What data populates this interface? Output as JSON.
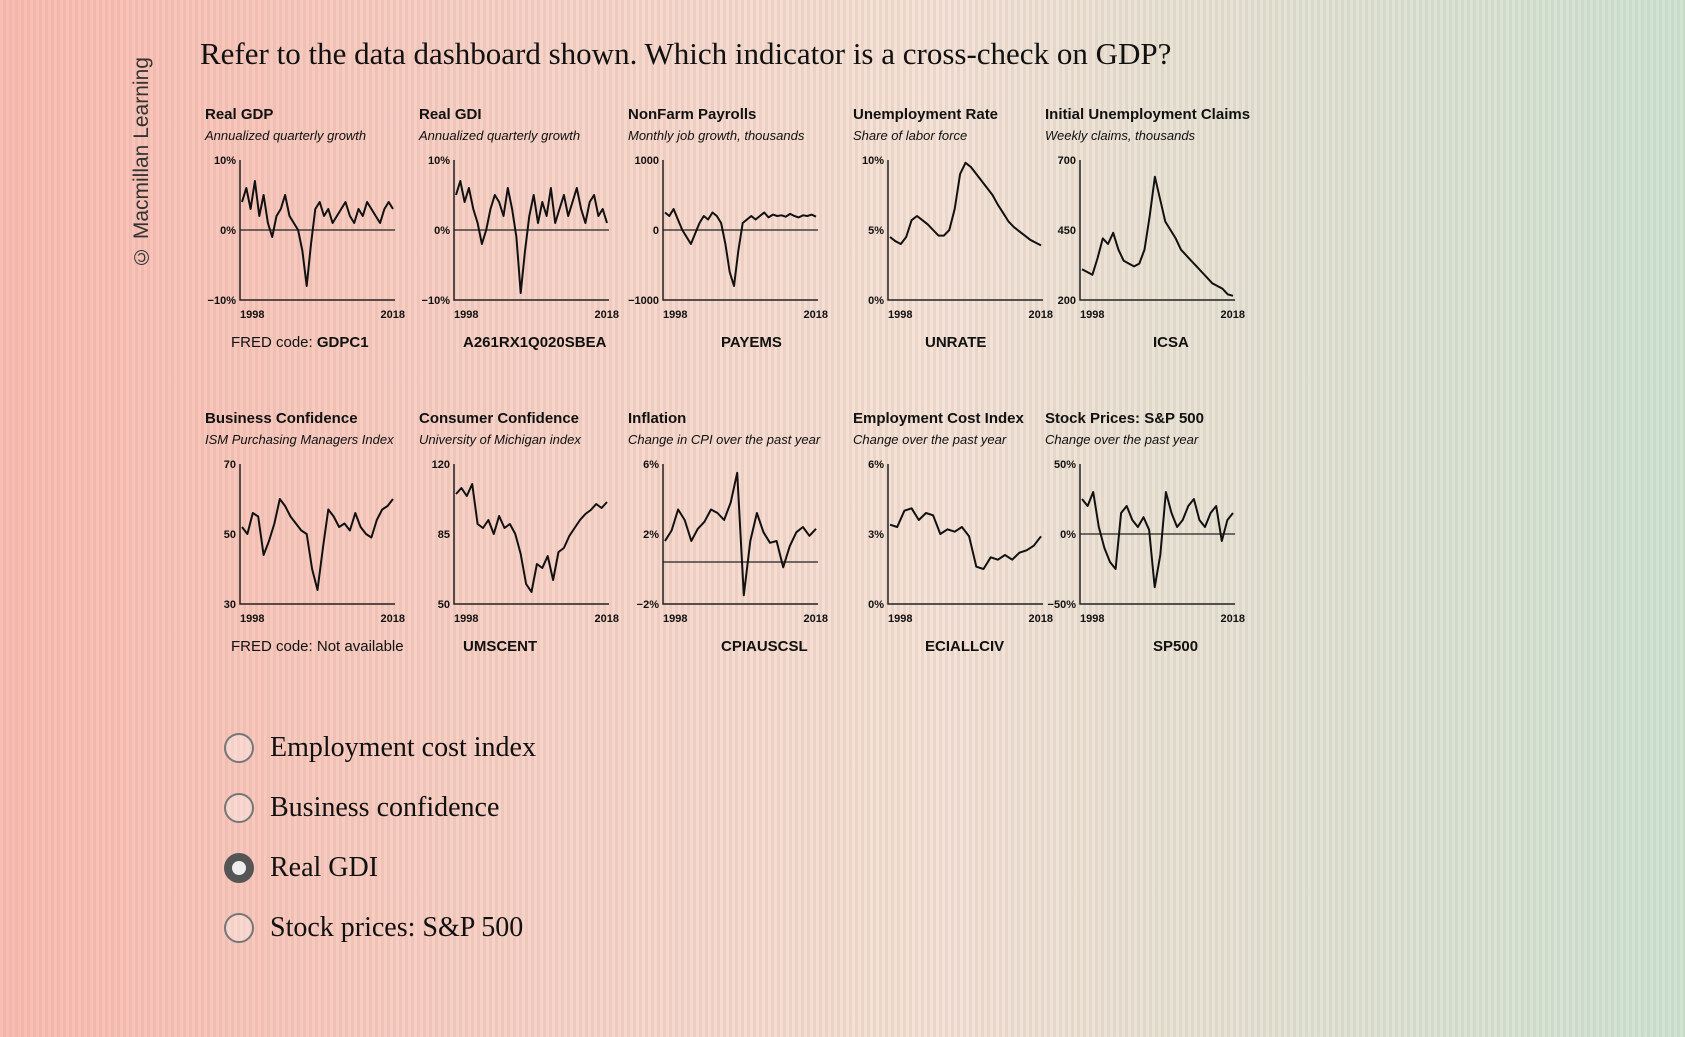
{
  "watermark": "© Macmillan Learning",
  "question": "Refer to the data dashboard shown. Which indicator is a cross-check on GDP?",
  "panels": [
    {
      "title": "Real GDP",
      "subtitle": "Annualized quarterly growth",
      "ylabels": [
        "10%",
        "0%",
        "−10%"
      ],
      "xlabels": [
        "1998",
        "2018"
      ],
      "code_prefix": "FRED code: ",
      "code": "GDPC1",
      "ref": 0.5,
      "chart_data": {
        "type": "line",
        "title": "Real GDP",
        "x_range": [
          1998,
          2018
        ],
        "ylim": [
          -10,
          10
        ],
        "y_ticks": [
          "10%",
          "0%",
          "−10%"
        ],
        "series": [
          {
            "values": [
              4,
              6,
              3,
              7,
              2,
              5,
              1,
              -1,
              2,
              3,
              5,
              2,
              1,
              0,
              -3,
              -8,
              -2,
              3,
              4,
              2,
              3,
              1,
              2,
              3,
              4,
              2,
              1,
              3,
              2,
              4,
              3,
              2,
              1,
              3,
              4,
              3
            ]
          }
        ]
      }
    },
    {
      "title": "Real GDI",
      "subtitle": "Annualized quarterly growth",
      "ylabels": [
        "10%",
        "0%",
        "−10%"
      ],
      "xlabels": [
        "1998",
        "2018"
      ],
      "code_prefix": "",
      "code": "A261RX1Q020SBEA",
      "ref": 0.5,
      "chart_data": {
        "type": "line",
        "title": "Real GDI",
        "x_range": [
          1998,
          2018
        ],
        "ylim": [
          -10,
          10
        ],
        "y_ticks": [
          "10%",
          "0%",
          "−10%"
        ],
        "series": [
          {
            "values": [
              5,
              7,
              4,
              6,
              3,
              1,
              -2,
              0,
              3,
              5,
              4,
              2,
              6,
              3,
              -1,
              -9,
              -3,
              2,
              5,
              1,
              4,
              2,
              6,
              1,
              3,
              5,
              2,
              4,
              6,
              3,
              1,
              4,
              5,
              2,
              3,
              1
            ]
          }
        ]
      }
    },
    {
      "title": "NonFarm Payrolls",
      "subtitle": "Monthly job growth, thousands",
      "ylabels": [
        "1000",
        "0",
        "−1000"
      ],
      "xlabels": [
        "1998",
        "2018"
      ],
      "code_prefix": "",
      "code": "PAYEMS",
      "ref": 0.5,
      "chart_data": {
        "type": "line",
        "title": "NonFarm Payrolls",
        "x_range": [
          1998,
          2018
        ],
        "ylim": [
          -1000,
          1000
        ],
        "y_ticks": [
          "1000",
          "0",
          "−1000"
        ],
        "series": [
          {
            "values": [
              250,
              200,
              300,
              150,
              0,
              -100,
              -200,
              -50,
              100,
              200,
              150,
              250,
              200,
              100,
              -200,
              -600,
              -800,
              -300,
              100,
              150,
              200,
              150,
              200,
              250,
              180,
              220,
              200,
              210,
              190,
              230,
              200,
              180,
              210,
              200,
              220,
              190
            ]
          }
        ]
      }
    },
    {
      "title": "Unemployment Rate",
      "subtitle": "Share of labor force",
      "ylabels": [
        "10%",
        "5%",
        "0%"
      ],
      "xlabels": [
        "1998",
        "2018"
      ],
      "code_prefix": "",
      "code": "UNRATE",
      "ref": null,
      "chart_data": {
        "type": "line",
        "title": "Unemployment Rate",
        "x_range": [
          1998,
          2018
        ],
        "ylim": [
          0,
          10
        ],
        "y_ticks": [
          "10%",
          "5%",
          "0%"
        ],
        "series": [
          {
            "values": [
              4.5,
              4.2,
              4.0,
              4.5,
              5.7,
              6.0,
              5.7,
              5.4,
              5.0,
              4.6,
              4.6,
              5.0,
              6.5,
              9.0,
              9.8,
              9.5,
              9.0,
              8.5,
              8.0,
              7.5,
              6.8,
              6.2,
              5.6,
              5.2,
              4.9,
              4.6,
              4.3,
              4.1,
              3.9
            ]
          }
        ]
      }
    },
    {
      "title": "Initial Unemployment Claims",
      "subtitle": "Weekly claims, thousands",
      "ylabels": [
        "700",
        "450",
        "200"
      ],
      "xlabels": [
        "1998",
        "2018"
      ],
      "code_prefix": "",
      "code": "ICSA",
      "ref": null,
      "chart_data": {
        "type": "line",
        "title": "Initial Unemployment Claims",
        "x_range": [
          1998,
          2018
        ],
        "ylim": [
          200,
          700
        ],
        "y_ticks": [
          "700",
          "450",
          "200"
        ],
        "series": [
          {
            "values": [
              310,
              300,
              290,
              350,
              420,
              400,
              440,
              380,
              340,
              330,
              320,
              330,
              380,
              500,
              640,
              560,
              480,
              450,
              420,
              380,
              360,
              340,
              320,
              300,
              280,
              260,
              250,
              240,
              220,
              215
            ]
          }
        ]
      }
    },
    {
      "title": "Business Confidence",
      "subtitle": "ISM Purchasing Managers Index",
      "ylabels": [
        "70",
        "50",
        "30"
      ],
      "xlabels": [
        "1998",
        "2018"
      ],
      "code_prefix": "FRED code: ",
      "code": "Not available",
      "ref": null,
      "chart_data": {
        "type": "line",
        "title": "Business Confidence",
        "x_range": [
          1998,
          2018
        ],
        "ylim": [
          30,
          70
        ],
        "y_ticks": [
          "70",
          "50",
          "30"
        ],
        "series": [
          {
            "values": [
              52,
              50,
              56,
              55,
              44,
              48,
              53,
              60,
              58,
              55,
              53,
              51,
              50,
              40,
              34,
              46,
              57,
              55,
              52,
              53,
              51,
              56,
              52,
              50,
              49,
              54,
              57,
              58,
              60
            ]
          }
        ]
      }
    },
    {
      "title": "Consumer Confidence",
      "subtitle": "University of Michigan index",
      "ylabels": [
        "120",
        "85",
        "50"
      ],
      "xlabels": [
        "1998",
        "2018"
      ],
      "code_prefix": "",
      "code": "UMSCENT",
      "ref": null,
      "chart_data": {
        "type": "line",
        "title": "Consumer Confidence",
        "x_range": [
          1998,
          2018
        ],
        "ylim": [
          50,
          120
        ],
        "y_ticks": [
          "120",
          "85",
          "50"
        ],
        "series": [
          {
            "values": [
              105,
              108,
              104,
              110,
              90,
              88,
              92,
              85,
              94,
              88,
              90,
              85,
              75,
              60,
              56,
              70,
              68,
              74,
              62,
              76,
              78,
              84,
              88,
              92,
              95,
              97,
              100,
              98,
              101
            ]
          }
        ]
      }
    },
    {
      "title": "Inflation",
      "subtitle": "Change in CPI over the past year",
      "ylabels": [
        "6%",
        "2%",
        "−2%"
      ],
      "xlabels": [
        "1998",
        "2018"
      ],
      "code_prefix": "",
      "code": "CPIAUSCSL",
      "ref": 0.3,
      "chart_data": {
        "type": "line",
        "title": "Inflation",
        "x_range": [
          1998,
          2018
        ],
        "ylim": [
          -2,
          6
        ],
        "y_ticks": [
          "6%",
          "2%",
          "−2%"
        ],
        "series": [
          {
            "values": [
              1.6,
              2.2,
              3.4,
              2.8,
              1.6,
              2.3,
              2.7,
              3.4,
              3.2,
              2.8,
              3.8,
              5.5,
              -1.5,
              1.6,
              3.2,
              2.1,
              1.5,
              1.6,
              0.1,
              1.3,
              2.1,
              2.4,
              1.9,
              2.3
            ]
          }
        ]
      }
    },
    {
      "title": "Employment Cost Index",
      "subtitle": "Change over the past year",
      "ylabels": [
        "6%",
        "3%",
        "0%"
      ],
      "xlabels": [
        "1998",
        "2018"
      ],
      "code_prefix": "",
      "code": "ECIALLCIV",
      "ref": null,
      "chart_data": {
        "type": "line",
        "title": "Employment Cost Index",
        "x_range": [
          1998,
          2018
        ],
        "ylim": [
          0,
          6
        ],
        "y_ticks": [
          "6%",
          "3%",
          "0%"
        ],
        "series": [
          {
            "values": [
              3.4,
              3.3,
              4.0,
              4.1,
              3.6,
              3.9,
              3.8,
              3.0,
              3.2,
              3.1,
              3.3,
              2.9,
              1.6,
              1.5,
              2.0,
              1.9,
              2.1,
              1.9,
              2.2,
              2.3,
              2.5,
              2.9
            ]
          }
        ]
      }
    },
    {
      "title": "Stock Prices: S&P 500",
      "subtitle": "Change over the past year",
      "ylabels": [
        "50%",
        "0%",
        "−50%"
      ],
      "xlabels": [
        "1998",
        "2018"
      ],
      "code_prefix": "",
      "code": "SP500",
      "ref": 0.5,
      "chart_data": {
        "type": "line",
        "title": "Stock Prices: S&P 500",
        "x_range": [
          1998,
          2018
        ],
        "ylim": [
          -50,
          50
        ],
        "y_ticks": [
          "50%",
          "0%",
          "−50%"
        ],
        "series": [
          {
            "values": [
              25,
              20,
              30,
              5,
              -10,
              -20,
              -25,
              15,
              20,
              10,
              5,
              12,
              3,
              -38,
              -15,
              30,
              15,
              5,
              10,
              20,
              25,
              10,
              5,
              15,
              20,
              -5,
              10,
              15
            ]
          }
        ]
      }
    }
  ],
  "options": [
    {
      "label": "Employment cost index",
      "selected": false
    },
    {
      "label": "Business confidence",
      "selected": false
    },
    {
      "label": "Real GDI",
      "selected": true
    },
    {
      "label": "Stock prices: S&P 500",
      "selected": false
    }
  ]
}
